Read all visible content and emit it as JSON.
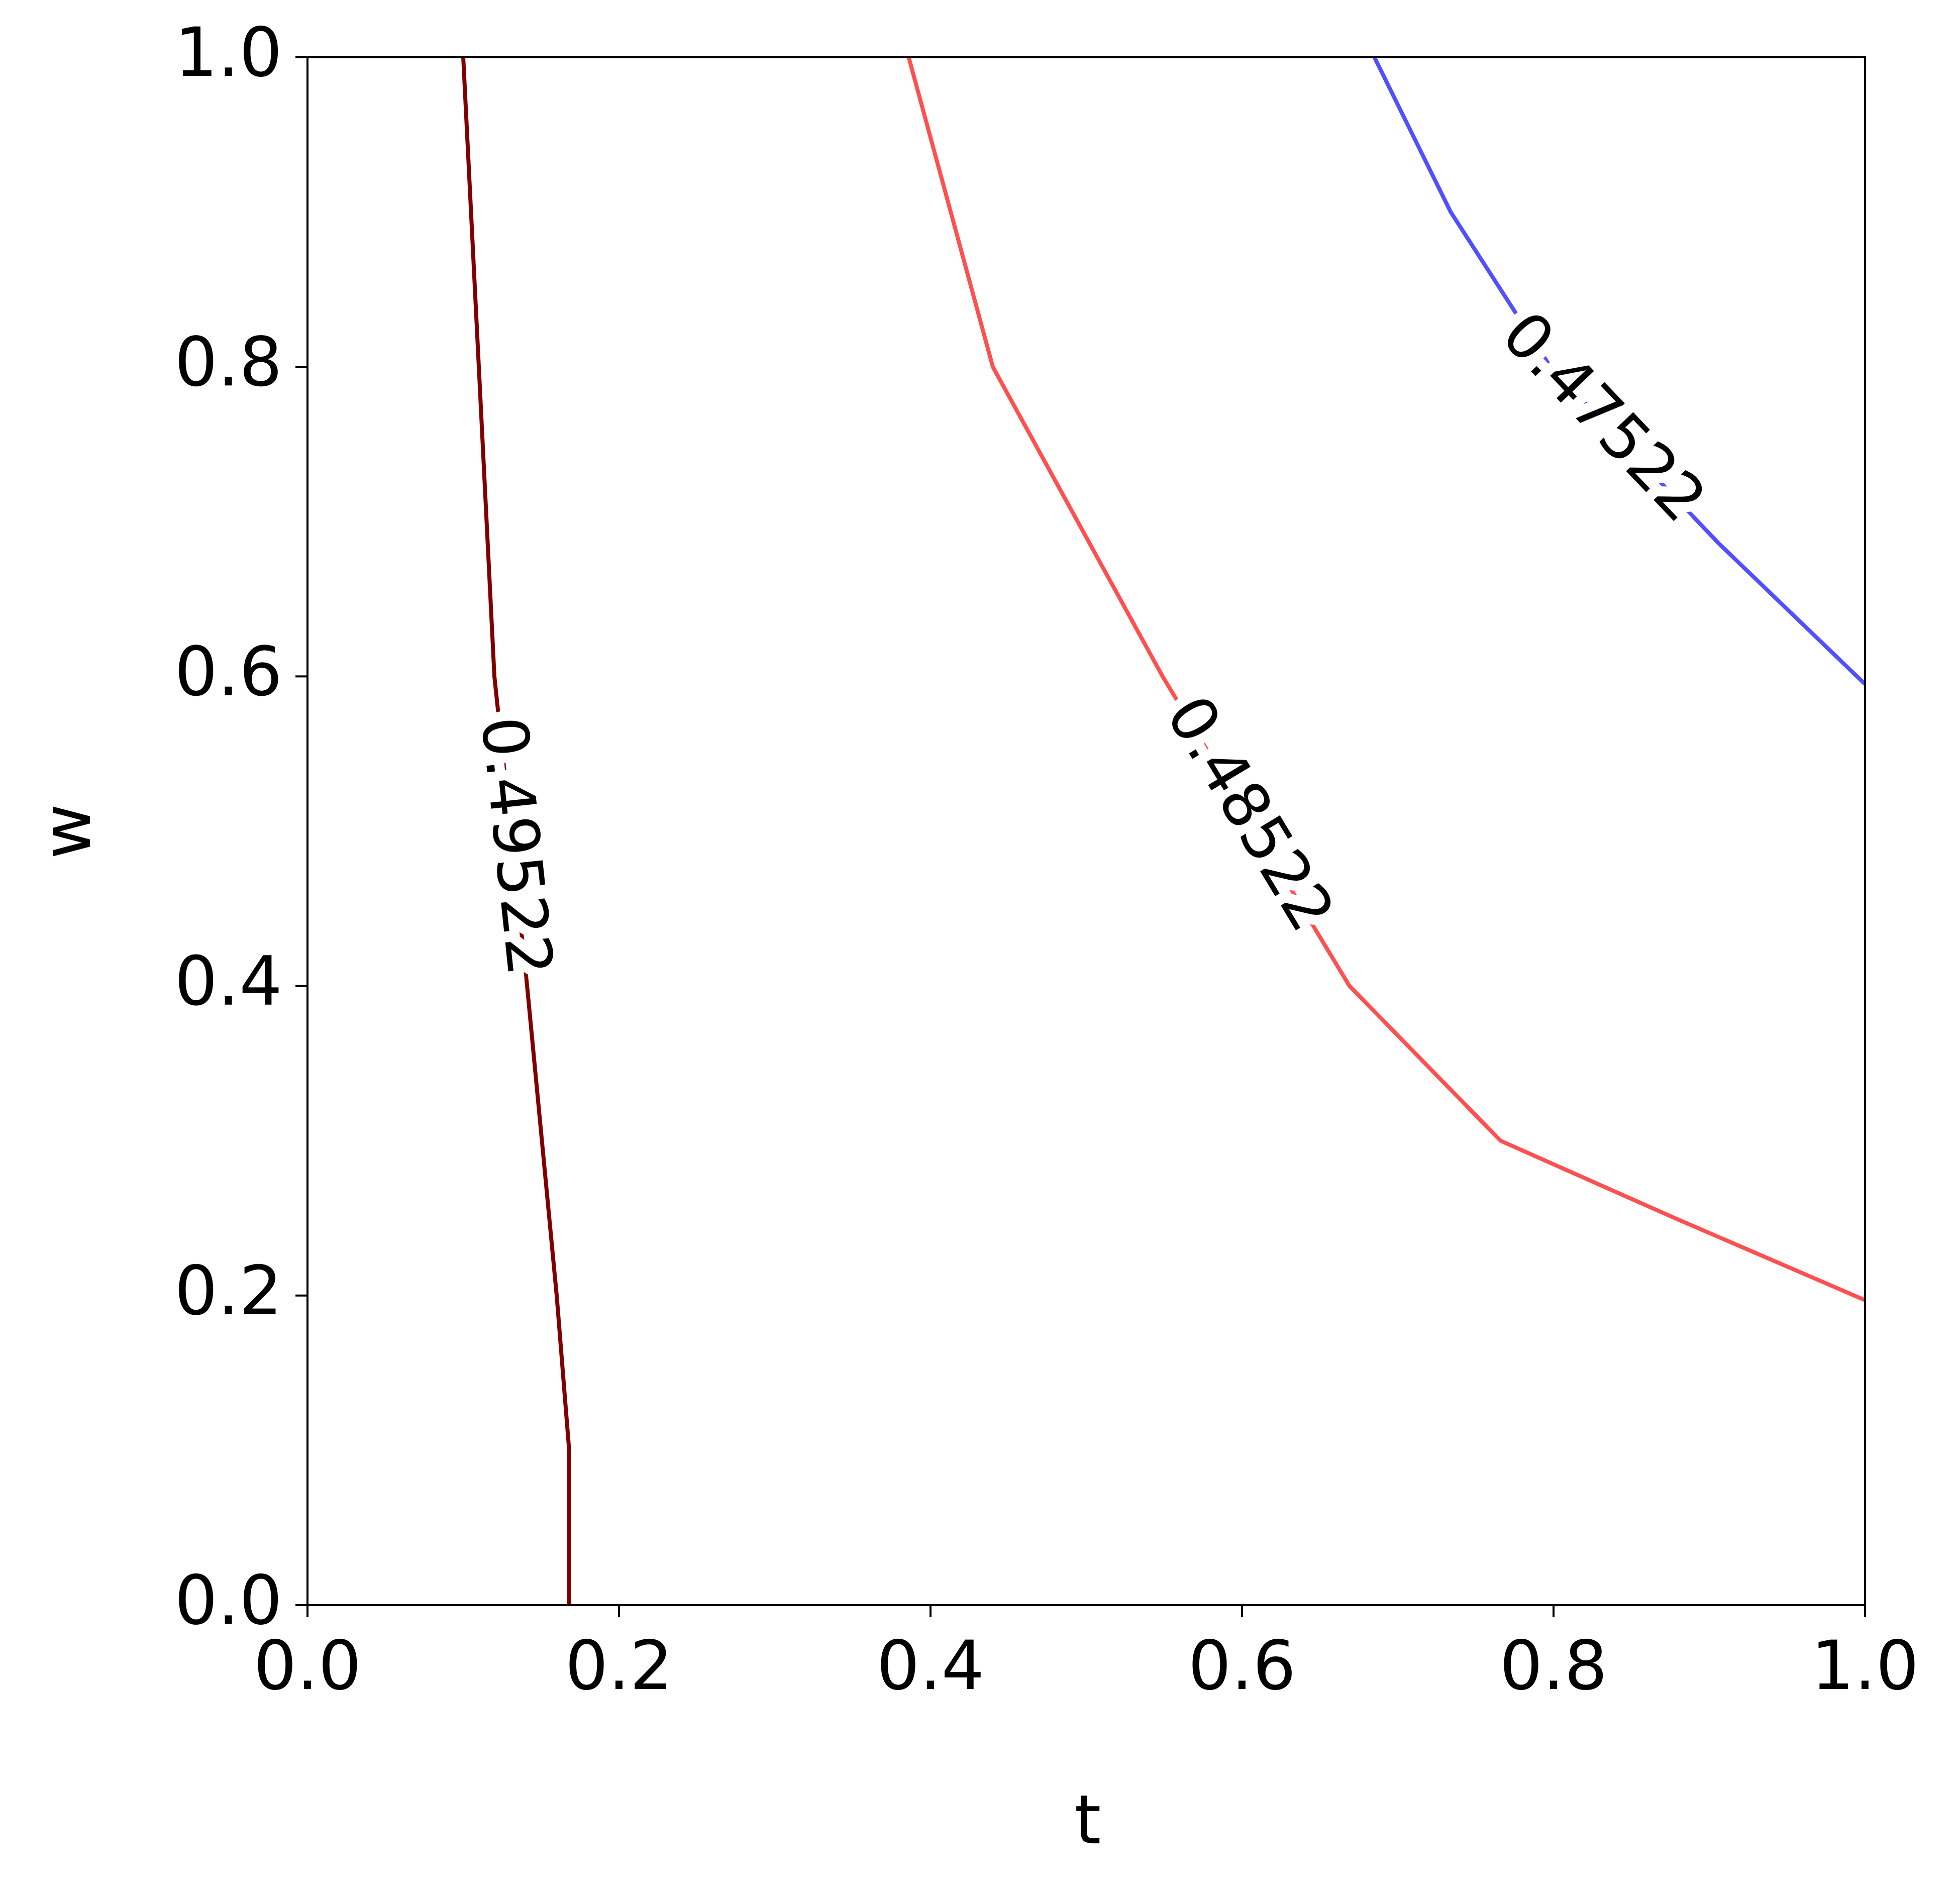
{
  "chart_data": {
    "type": "contour",
    "x_label": "t",
    "y_label": "w",
    "xlim": [
      0,
      1
    ],
    "ylim": [
      0,
      1
    ],
    "xticks": [
      {
        "value": 0,
        "label": "0.0"
      },
      0.2,
      0.4,
      0.6,
      0.8,
      {
        "value": 1,
        "label": "1.0"
      }
    ],
    "yticks": [
      {
        "value": 0,
        "label": "0.0"
      },
      0.2,
      0.4,
      0.6,
      0.8,
      {
        "value": 1,
        "label": "1.0"
      }
    ],
    "series": [
      {
        "name": "0.49522",
        "color": "#800000",
        "x": [
          0.1,
          0.11,
          0.12,
          0.141,
          0.16,
          0.168,
          0.168
        ],
        "y": [
          1.0,
          0.8,
          0.6,
          0.4,
          0.2,
          0.1,
          0.0
        ]
      },
      {
        "name": "0.48522",
        "color": "#ff5050",
        "x": [
          0.386,
          0.44,
          0.549,
          0.669,
          0.766,
          0.878,
          1.0
        ],
        "y": [
          1.0,
          0.8,
          0.6,
          0.4,
          0.3,
          0.25,
          0.197
        ]
      },
      {
        "name": "0.47522",
        "color": "#5050ff",
        "x": [
          0.685,
          0.734,
          0.798,
          0.906,
          1.0
        ],
        "y": [
          1.0,
          0.9,
          0.8,
          0.686,
          0.595
        ]
      }
    ]
  }
}
